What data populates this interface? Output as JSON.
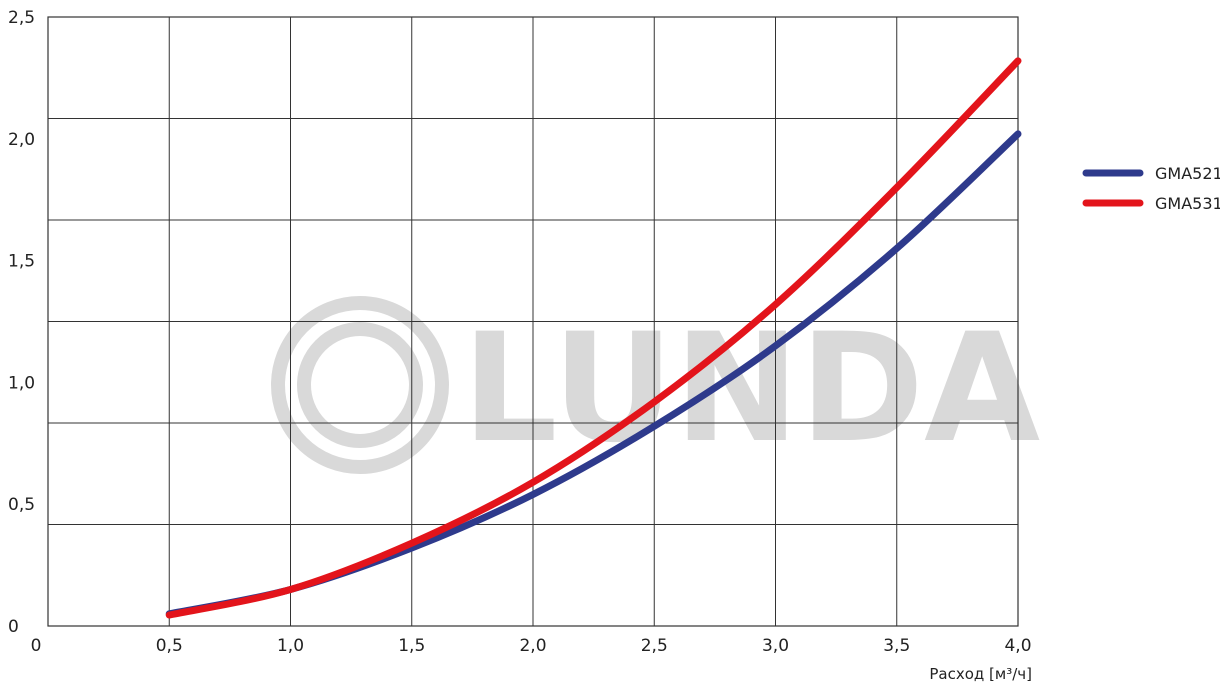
{
  "chart_data": {
    "type": "line",
    "title": "",
    "xlabel": "Расход [м³/ч]",
    "ylabel": "",
    "xlim": [
      0,
      4.0
    ],
    "ylim": [
      0,
      2.5
    ],
    "grid": true,
    "x_ticks": [
      0.5,
      1.0,
      1.5,
      2.0,
      2.5,
      3.0,
      3.5,
      4.0
    ],
    "x_tick_labels": [
      "0,5",
      "1,0",
      "1,5",
      "2,0",
      "2,5",
      "3,0",
      "3,5",
      "4,0"
    ],
    "x_origin_label": "0",
    "y_ticks": [
      0,
      0.5,
      1.0,
      1.5,
      2.0,
      2.5
    ],
    "y_tick_labels": [
      "0",
      "0,5",
      "1,0",
      "1,5",
      "2,0",
      "2,5"
    ],
    "legend_position": "right",
    "series": [
      {
        "name": "GMA521",
        "color": "#2e3a8c",
        "x": [
          0.5,
          1.0,
          1.5,
          2.0,
          2.5,
          3.0,
          3.5,
          4.0
        ],
        "y": [
          0.05,
          0.15,
          0.32,
          0.54,
          0.82,
          1.15,
          1.55,
          2.02
        ]
      },
      {
        "name": "GMA531",
        "color": "#e3141b",
        "x": [
          0.5,
          1.0,
          1.5,
          2.0,
          2.5,
          3.0,
          3.5,
          4.0
        ],
        "y": [
          0.045,
          0.15,
          0.34,
          0.59,
          0.92,
          1.32,
          1.8,
          2.32
        ]
      }
    ]
  },
  "watermark": {
    "text": "LUNDA",
    "color": "#d9d9d9"
  }
}
